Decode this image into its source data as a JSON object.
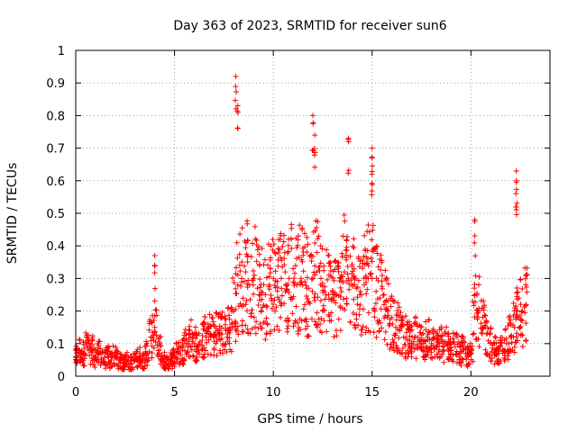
{
  "chart_data": {
    "type": "scatter",
    "title": "Day 363 of 2023, SRMTID for receiver sun6",
    "xlabel": "GPS time / hours",
    "ylabel": "SRMTID / TECUs",
    "xlim": [
      0,
      24
    ],
    "ylim": [
      0,
      1
    ],
    "xticks": [
      0,
      5,
      10,
      15,
      20
    ],
    "yticks": [
      0,
      0.1,
      0.2,
      0.3,
      0.4,
      0.5,
      0.6,
      0.7,
      0.8,
      0.9,
      1
    ],
    "grid": true,
    "marker": "+",
    "color": "#ff0000",
    "series": [
      {
        "name": "SRMTID",
        "x": [
          0.0,
          0.2,
          0.4,
          0.6,
          0.8,
          1.0,
          1.2,
          1.4,
          1.6,
          1.8,
          2.0,
          2.2,
          2.4,
          2.6,
          2.8,
          3.0,
          3.2,
          3.4,
          3.6,
          3.8,
          4.0,
          4.2,
          4.4,
          4.6,
          4.8,
          5.0,
          5.2,
          5.4,
          5.6,
          5.8,
          6.0,
          6.2,
          6.4,
          6.6,
          6.8,
          7.0,
          7.2,
          7.4,
          7.6,
          7.8,
          8.0,
          8.2,
          8.4,
          8.6,
          8.8,
          9.0,
          9.2,
          9.4,
          9.6,
          9.8,
          10.0,
          10.2,
          10.4,
          10.6,
          10.8,
          11.0,
          11.2,
          11.4,
          11.6,
          11.8,
          12.0,
          12.2,
          12.4,
          12.6,
          12.8,
          13.0,
          13.2,
          13.4,
          13.6,
          13.8,
          14.0,
          14.2,
          14.4,
          14.6,
          14.8,
          15.0,
          15.2,
          15.4,
          15.6,
          15.8,
          16.0,
          16.2,
          16.4,
          16.6,
          16.8,
          17.0,
          17.2,
          17.4,
          17.6,
          17.8,
          18.0,
          18.2,
          18.4,
          18.6,
          18.8,
          19.0,
          19.2,
          19.4,
          19.6,
          19.8,
          20.0,
          20.2,
          20.4,
          20.6,
          20.8,
          21.0,
          21.2,
          21.4,
          21.6,
          21.8,
          22.0,
          22.2,
          22.4,
          22.6,
          22.8
        ],
        "y": [
          0.06,
          0.08,
          0.07,
          0.09,
          0.08,
          0.06,
          0.07,
          0.05,
          0.06,
          0.05,
          0.06,
          0.05,
          0.04,
          0.05,
          0.04,
          0.05,
          0.06,
          0.05,
          0.07,
          0.12,
          0.15,
          0.08,
          0.05,
          0.04,
          0.05,
          0.06,
          0.07,
          0.08,
          0.1,
          0.12,
          0.1,
          0.09,
          0.11,
          0.12,
          0.13,
          0.12,
          0.14,
          0.13,
          0.14,
          0.15,
          0.2,
          0.28,
          0.3,
          0.32,
          0.28,
          0.3,
          0.27,
          0.26,
          0.25,
          0.28,
          0.3,
          0.29,
          0.3,
          0.32,
          0.3,
          0.33,
          0.28,
          0.3,
          0.29,
          0.27,
          0.3,
          0.32,
          0.28,
          0.26,
          0.25,
          0.24,
          0.25,
          0.3,
          0.32,
          0.3,
          0.28,
          0.27,
          0.26,
          0.28,
          0.3,
          0.3,
          0.26,
          0.24,
          0.22,
          0.2,
          0.18,
          0.15,
          0.14,
          0.12,
          0.11,
          0.1,
          0.12,
          0.11,
          0.1,
          0.12,
          0.1,
          0.09,
          0.1,
          0.09,
          0.1,
          0.08,
          0.09,
          0.07,
          0.08,
          0.06,
          0.07,
          0.25,
          0.2,
          0.15,
          0.13,
          0.1,
          0.08,
          0.07,
          0.08,
          0.1,
          0.12,
          0.15,
          0.18,
          0.2,
          0.22
        ]
      }
    ],
    "annotations": [
      {
        "x": 4.0,
        "y": 0.37
      },
      {
        "x": 8.1,
        "y": 0.92
      },
      {
        "x": 8.2,
        "y": 0.83
      },
      {
        "x": 12.0,
        "y": 0.8
      },
      {
        "x": 12.1,
        "y": 0.74
      },
      {
        "x": 13.8,
        "y": 0.73
      },
      {
        "x": 15.0,
        "y": 0.7
      },
      {
        "x": 15.0,
        "y": 0.67
      },
      {
        "x": 20.2,
        "y": 0.48
      },
      {
        "x": 22.3,
        "y": 0.63
      },
      {
        "x": 22.3,
        "y": 0.6
      }
    ]
  }
}
